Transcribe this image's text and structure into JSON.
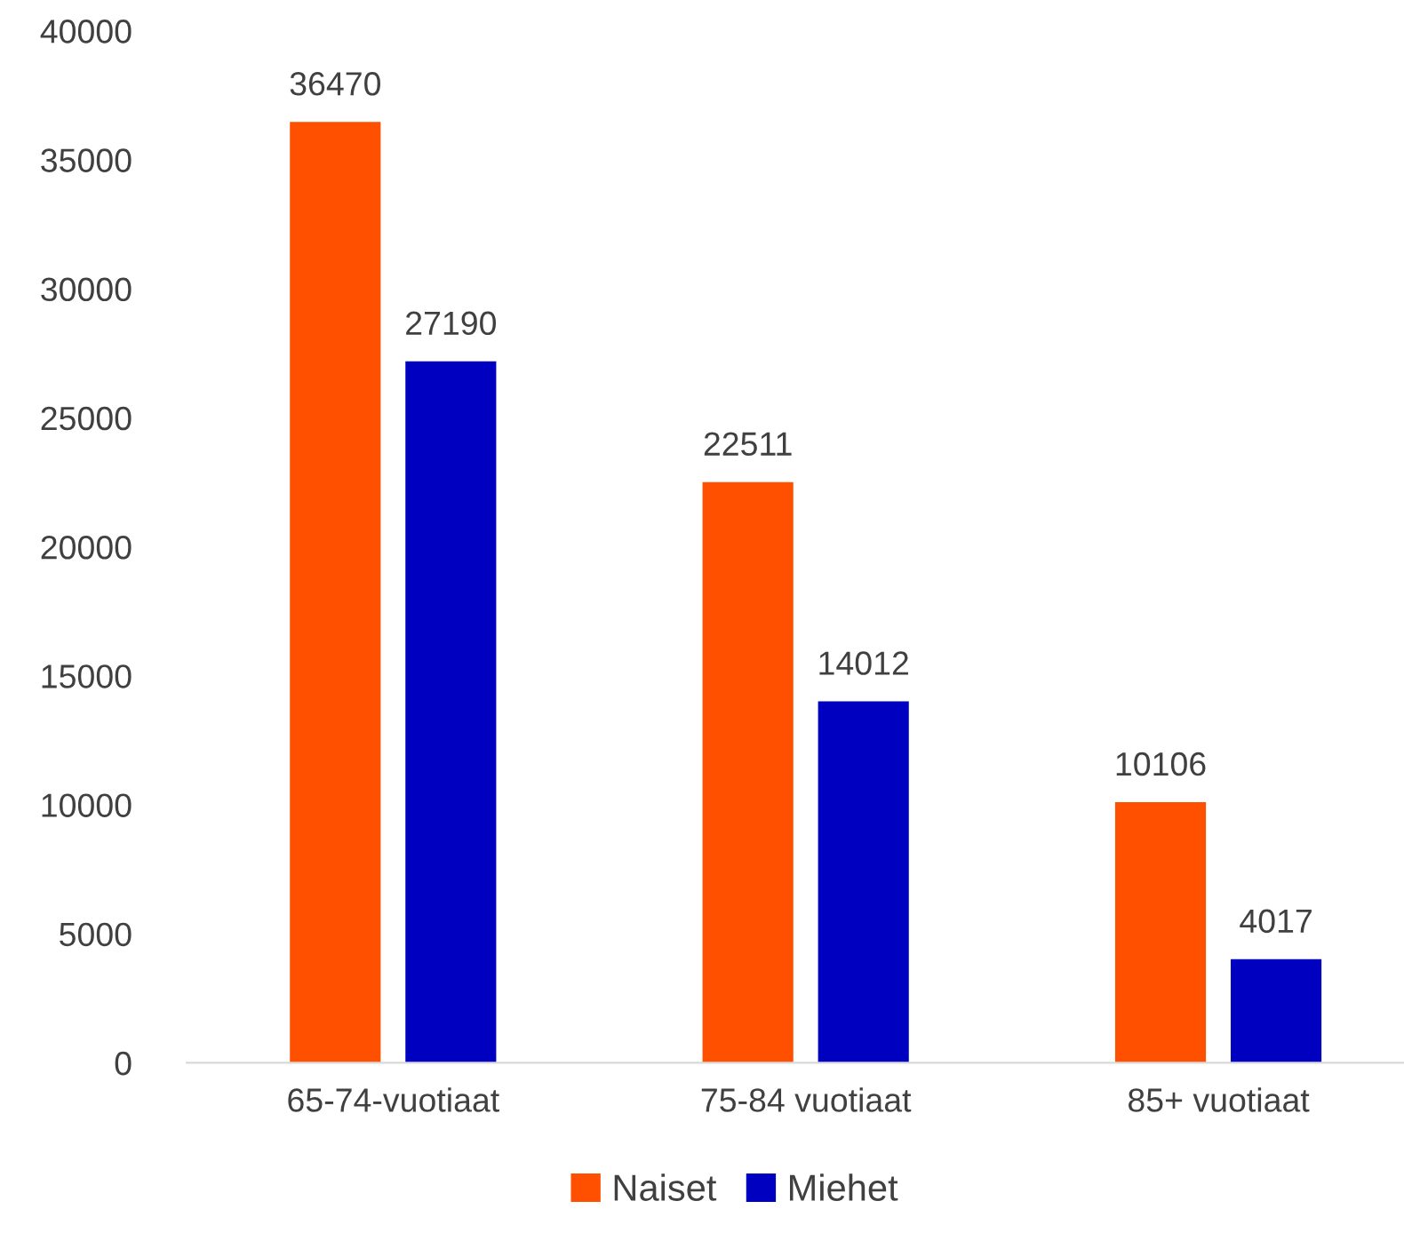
{
  "chart_data": {
    "type": "bar",
    "categories": [
      "65-74-vuotiaat",
      "75-84 vuotiaat",
      "85+ vuotiaat"
    ],
    "series": [
      {
        "name": "Naiset",
        "color": "#ff5000",
        "values": [
          36470,
          22511,
          10106
        ]
      },
      {
        "name": "Miehet",
        "color": "#0000c0",
        "values": [
          27190,
          14012,
          4017
        ]
      }
    ],
    "ylim": [
      0,
      40000
    ],
    "yticks": [
      0,
      5000,
      10000,
      15000,
      20000,
      25000,
      30000,
      35000,
      40000
    ],
    "grid": false,
    "legend": "bottom",
    "data_labels": true
  }
}
